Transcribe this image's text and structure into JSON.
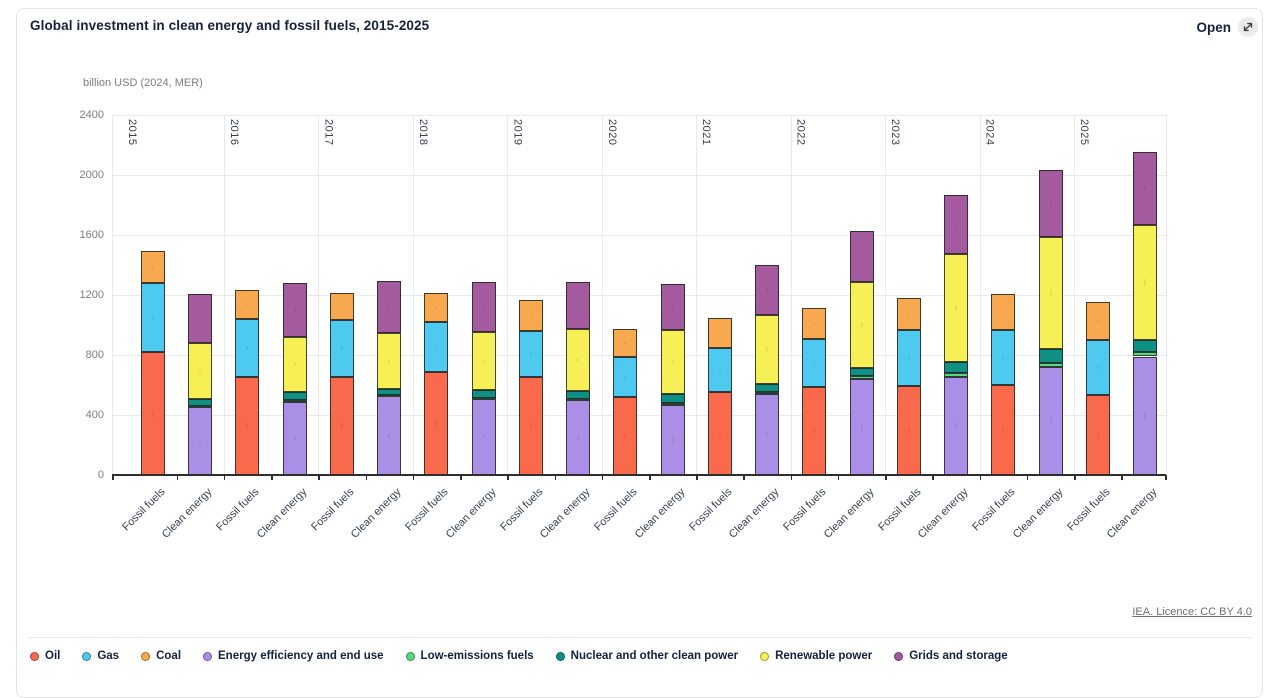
{
  "header": {
    "title": "Global investment in clean energy and fossil fuels, 2015-2025",
    "open_label": "Open"
  },
  "chart": {
    "unit_label": "billion USD (2024, MER)",
    "footer_link": "IEA. Licence: CC BY 4.0"
  },
  "chart_data": {
    "type": "bar",
    "stacked": true,
    "title": "Global investment in clean energy and fossil fuels, 2015-2025",
    "ylabel": "billion USD (2024, MER)",
    "ylim": [
      0,
      2400
    ],
    "ytick_interval": 400,
    "grid": true,
    "legend_position": "bottom",
    "years": [
      "2015",
      "2016",
      "2017",
      "2018",
      "2019",
      "2020",
      "2021",
      "2022",
      "2023",
      "2024",
      "2025"
    ],
    "bar_categories": [
      "Fossil fuels",
      "Clean energy"
    ],
    "series": [
      {
        "name": "Oil",
        "stack": "Fossil fuels",
        "color": "#f96a4d",
        "values": [
          820,
          655,
          655,
          685,
          655,
          520,
          555,
          590,
          595,
          600,
          535
        ]
      },
      {
        "name": "Gas",
        "stack": "Fossil fuels",
        "color": "#4ec9f0",
        "values": [
          460,
          385,
          380,
          335,
          305,
          265,
          295,
          315,
          375,
          365,
          365
        ]
      },
      {
        "name": "Coal",
        "stack": "Fossil fuels",
        "color": "#f8a84e",
        "values": [
          215,
          195,
          180,
          195,
          205,
          190,
          195,
          210,
          210,
          240,
          255
        ]
      },
      {
        "name": "Energy efficiency and end use",
        "stack": "Clean energy",
        "color": "#ab8fe6",
        "values": [
          455,
          490,
          525,
          505,
          500,
          470,
          540,
          640,
          655,
          720,
          790
        ]
      },
      {
        "name": "Low-emissions fuels",
        "stack": "Clean energy",
        "color": "#57d981",
        "values": [
          5,
          8,
          8,
          10,
          8,
          10,
          12,
          20,
          22,
          27,
          27
        ]
      },
      {
        "name": "Nuclear and other clean power",
        "stack": "Clean energy",
        "color": "#0e9184",
        "values": [
          50,
          55,
          40,
          50,
          55,
          60,
          57,
          55,
          78,
          90,
          85
        ]
      },
      {
        "name": "Renewable power",
        "stack": "Clean energy",
        "color": "#f6ef55",
        "values": [
          370,
          370,
          375,
          390,
          410,
          430,
          460,
          570,
          720,
          750,
          765
        ]
      },
      {
        "name": "Grids and storage",
        "stack": "Clean energy",
        "color": "#a45a9e",
        "values": [
          330,
          355,
          345,
          330,
          315,
          305,
          331,
          345,
          390,
          445,
          485
        ]
      }
    ]
  }
}
